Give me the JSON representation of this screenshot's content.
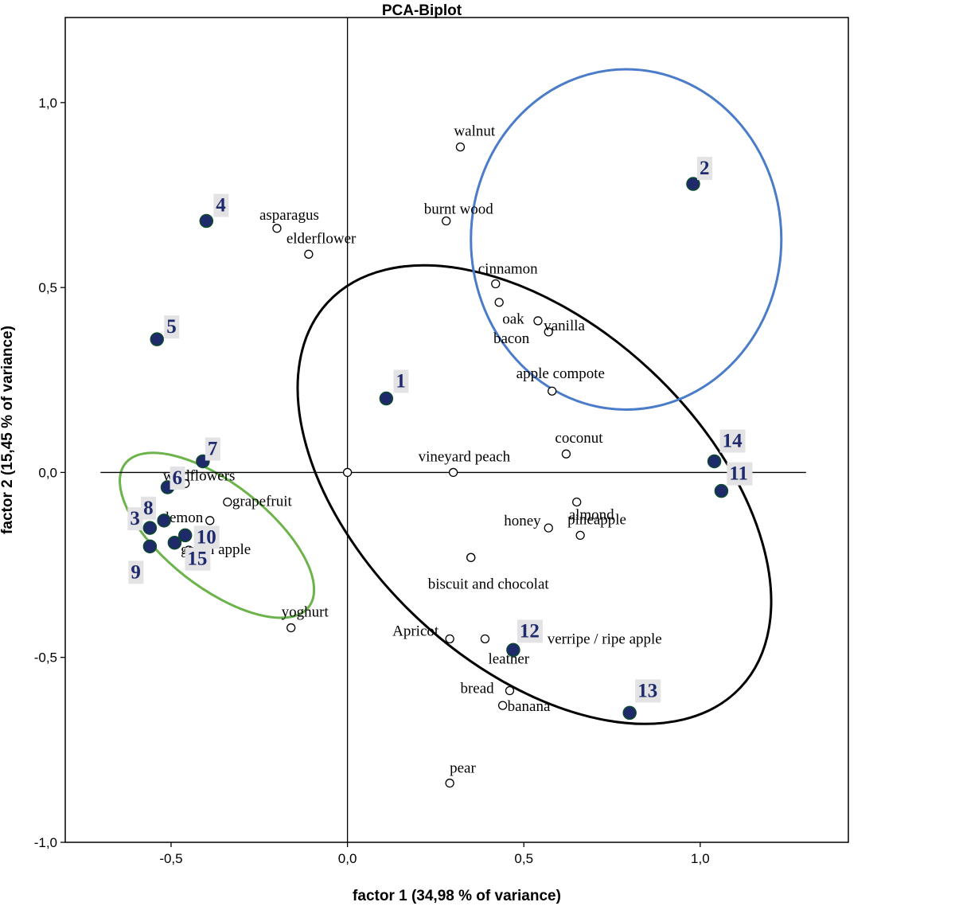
{
  "chart_data": {
    "type": "scatter",
    "title": "PCA-Biplot",
    "xlabel": "factor 1 (34,98 % of variance)",
    "ylabel": "factor 2 (15,45 % of variance)",
    "xlim": [
      -0.8,
      1.42
    ],
    "ylim": [
      -1.0,
      1.23
    ],
    "x_ticks": [
      {
        "value": -0.5,
        "label": "-0,5"
      },
      {
        "value": 0.0,
        "label": "0,0"
      },
      {
        "value": 0.5,
        "label": "0,5"
      },
      {
        "value": 1.0,
        "label": "1,0"
      }
    ],
    "y_ticks": [
      {
        "value": -1.0,
        "label": "-1,0"
      },
      {
        "value": -0.5,
        "label": "-0,5"
      },
      {
        "value": 0.0,
        "label": "0,0"
      },
      {
        "value": 0.5,
        "label": "0,5"
      },
      {
        "value": 1.0,
        "label": "1,0"
      }
    ],
    "reference_lines": {
      "x_from": -0.7,
      "x_to": 1.3,
      "y_from": -1.0,
      "y_to": 1.23
    },
    "variables": [
      {
        "name": "walnut",
        "x": 0.32,
        "y": 0.88
      },
      {
        "name": "asparagus",
        "x": -0.2,
        "y": 0.66
      },
      {
        "name": "elderflower",
        "x": -0.11,
        "y": 0.59
      },
      {
        "name": "burnt wood",
        "x": 0.28,
        "y": 0.68
      },
      {
        "name": "cinnamon",
        "x": 0.42,
        "y": 0.51
      },
      {
        "name": "oak",
        "x": 0.43,
        "y": 0.46
      },
      {
        "name": "vanilla",
        "x": 0.57,
        "y": 0.38
      },
      {
        "name": "bacon",
        "x": 0.54,
        "y": 0.41
      },
      {
        "name": "apple compote",
        "x": 0.58,
        "y": 0.22
      },
      {
        "name": "coconut",
        "x": 0.62,
        "y": 0.05
      },
      {
        "name": "vineyard peach",
        "x": 0.3,
        "y": 0.0
      },
      {
        "name": "almond",
        "x": 0.65,
        "y": -0.08
      },
      {
        "name": "honey",
        "x": 0.57,
        "y": -0.15
      },
      {
        "name": "pineapple",
        "x": 0.66,
        "y": -0.17
      },
      {
        "name": "verripe / ripe apple",
        "x": 0.35,
        "y": -0.23
      },
      {
        "name": "biscuit and chocolat",
        "x": 0.35,
        "y": -0.23
      },
      {
        "name": "wildflowers",
        "x": -0.46,
        "y": -0.03
      },
      {
        "name": "grapefruit",
        "x": -0.34,
        "y": -0.08
      },
      {
        "name": "lemon",
        "x": -0.39,
        "y": -0.13
      },
      {
        "name": "green apple",
        "x": -0.45,
        "y": -0.21
      },
      {
        "name": "yoghurt",
        "x": -0.16,
        "y": -0.42
      },
      {
        "name": "Apricot",
        "x": 0.29,
        "y": -0.45
      },
      {
        "name": "leather",
        "x": 0.39,
        "y": -0.45
      },
      {
        "name": "bread",
        "x": 0.46,
        "y": -0.59
      },
      {
        "name": "banana",
        "x": 0.44,
        "y": -0.63
      },
      {
        "name": "pear",
        "x": 0.29,
        "y": -0.84
      },
      {
        "name": "origin",
        "x": 0.0,
        "y": 0.0
      }
    ],
    "samples": [
      {
        "name": "1",
        "x": 0.11,
        "y": 0.2
      },
      {
        "name": "2",
        "x": 0.98,
        "y": 0.78
      },
      {
        "name": "3",
        "x": -0.56,
        "y": -0.15
      },
      {
        "name": "4",
        "x": -0.4,
        "y": 0.68
      },
      {
        "name": "5",
        "x": -0.54,
        "y": 0.36
      },
      {
        "name": "6",
        "x": -0.51,
        "y": -0.04
      },
      {
        "name": "7",
        "x": -0.41,
        "y": 0.03
      },
      {
        "name": "8",
        "x": -0.52,
        "y": -0.13
      },
      {
        "name": "9",
        "x": -0.56,
        "y": -0.2
      },
      {
        "name": "10",
        "x": -0.46,
        "y": -0.17
      },
      {
        "name": "11",
        "x": 1.06,
        "y": -0.05
      },
      {
        "name": "12",
        "x": 0.47,
        "y": -0.48
      },
      {
        "name": "13",
        "x": 0.8,
        "y": -0.65
      },
      {
        "name": "14",
        "x": 1.04,
        "y": 0.03
      },
      {
        "name": "15",
        "x": -0.49,
        "y": -0.19
      }
    ],
    "ellipses": [
      {
        "name": "overall",
        "color": "#000000",
        "cx": 0.53,
        "cy": -0.06,
        "rx": 0.8,
        "ry": 0.46,
        "rotate_deg": 43
      },
      {
        "name": "group-2",
        "color": "#4a7cc9",
        "cx": 0.79,
        "cy": 0.63,
        "rx": 0.44,
        "ry": 0.46,
        "rotate_deg": 0
      },
      {
        "name": "group-left",
        "color": "#6bb34a",
        "cx": -0.37,
        "cy": -0.17,
        "rx": 0.33,
        "ry": 0.14,
        "rotate_deg": 38
      }
    ],
    "colors": {
      "sample_fill": "#1f2a6b",
      "sample_stroke": "#0c4a2c",
      "sample_label": "#1f2a6b",
      "sample_label_bg": "#e3e3e6",
      "variable_marker": "#000000"
    }
  }
}
